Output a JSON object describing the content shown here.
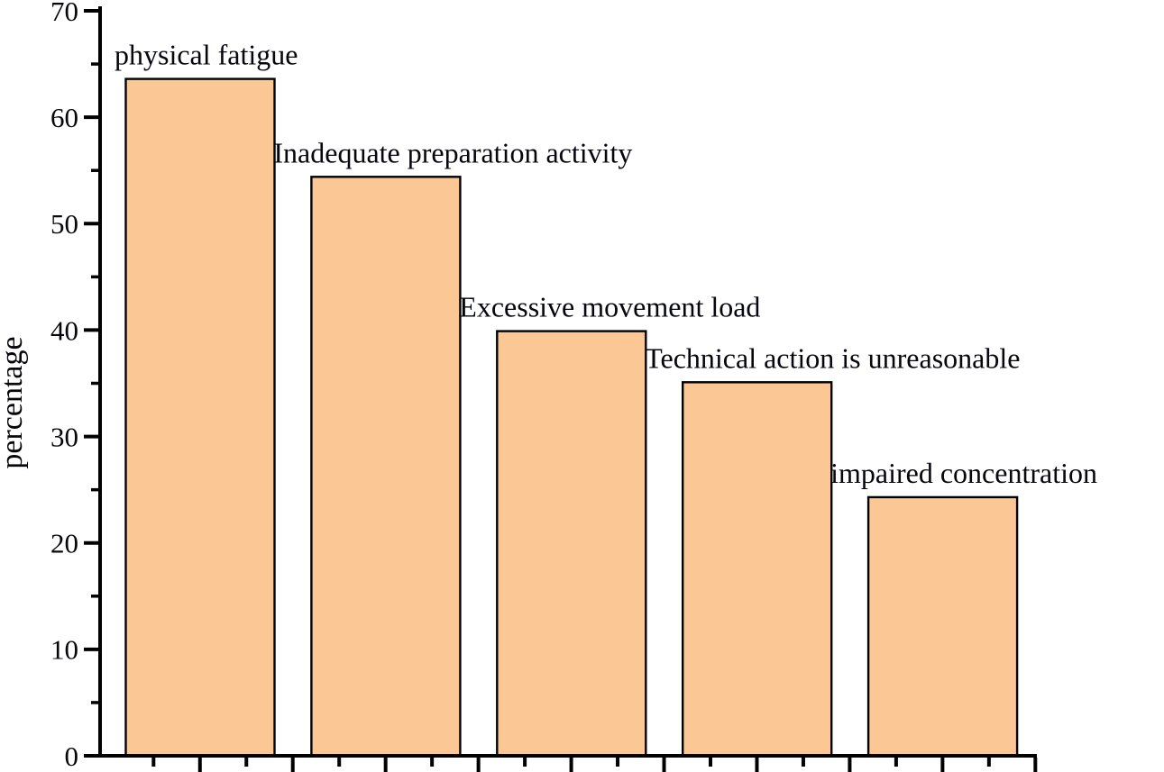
{
  "chart_data": {
    "type": "bar",
    "title": "",
    "xlabel": "",
    "ylabel": "percentage",
    "ylim": [
      0,
      70
    ],
    "yticks": [
      0,
      10,
      20,
      30,
      40,
      50,
      60,
      70
    ],
    "yminor_ticks": [
      5,
      15,
      25,
      35,
      45,
      55,
      65
    ],
    "categories": [
      "physical fatigue",
      "Inadequate preparation activity",
      "Excessive movement load",
      "Technical action is unreasonable",
      "impaired concentration"
    ],
    "values": [
      63.6,
      54.4,
      39.9,
      35.1,
      24.3
    ],
    "annotation_style": "category name printed above each bar, no x tick labels",
    "grid": "off",
    "legend": "none",
    "colors": {
      "bar_fill": "#FAC795",
      "bar_stroke": "#000000",
      "axis": "#000000",
      "text": "#06060f",
      "background": "#ffffff"
    }
  }
}
